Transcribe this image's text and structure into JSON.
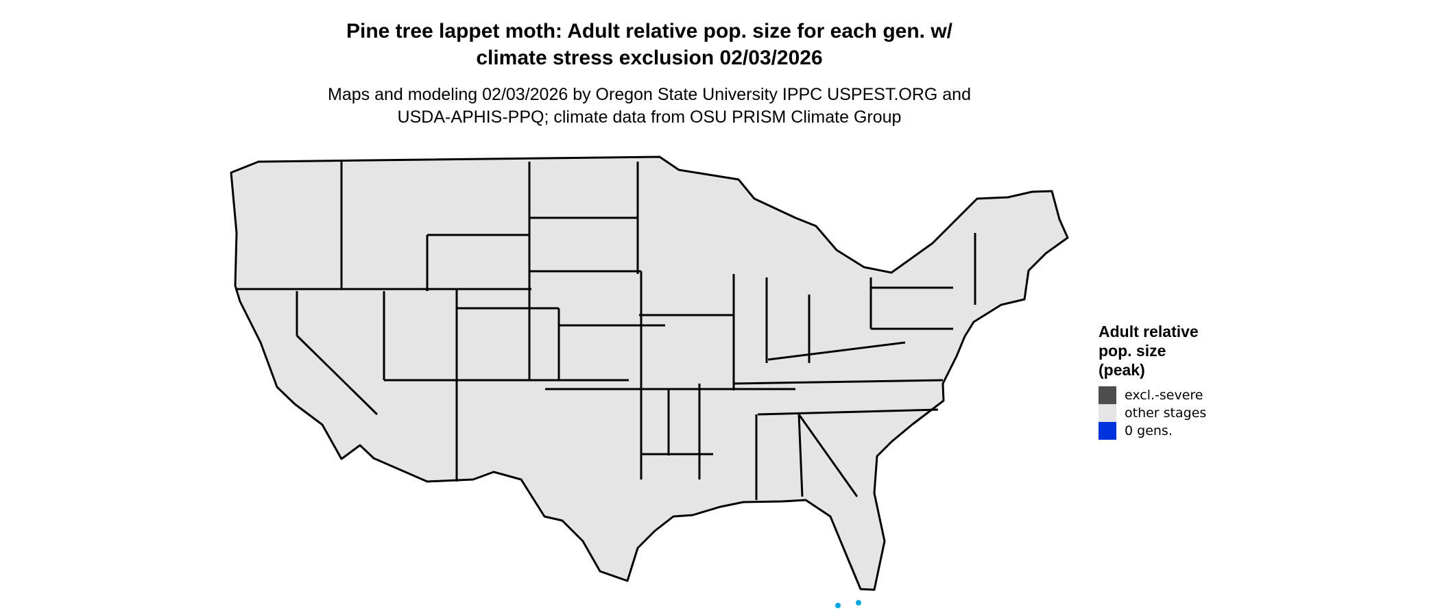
{
  "title": "Pine tree lappet moth: Adult relative pop. size for each gen. w/ climate stress exclusion 02/03/2026",
  "title_line1": "Pine tree lappet moth: Adult relative pop. size for each gen. w/",
  "title_line2": "climate stress exclusion 02/03/2026",
  "subtitle_line1": "Maps and modeling 02/03/2026 by Oregon State University IPPC USPEST.ORG and",
  "subtitle_line2": "USDA-APHIS-PPQ; climate data from OSU PRISM Climate Group",
  "map": {
    "region": "Contiguous United States",
    "fill_color": "#e5e5e5",
    "border_color": "#000000",
    "zero_gens_areas_color": "#00a8e0"
  },
  "legend": {
    "title_line1": "Adult relative",
    "title_line2": "pop. size",
    "title_line3": "(peak)",
    "items": [
      {
        "label": "excl.-severe",
        "color": "#4d4d4d"
      },
      {
        "label": "other stages",
        "color": "#e5e5e5"
      },
      {
        "label": "0 gens.",
        "color": "#0033dd"
      }
    ]
  }
}
